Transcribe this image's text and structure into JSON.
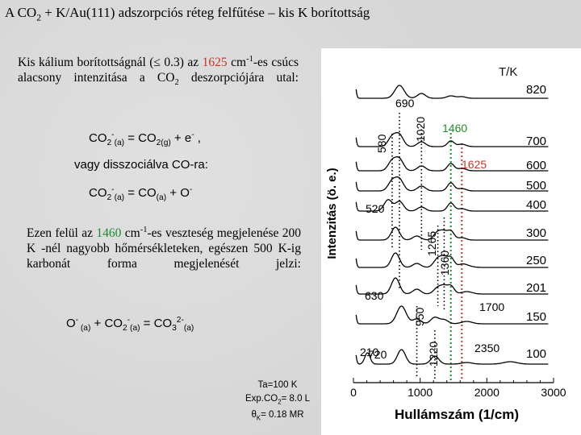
{
  "slide": {
    "title_pre": "A CO",
    "title_sub": "2",
    "title_post": " + K/Au(111) adszorpciós réteg felfűtése – kis K borítottság",
    "p1_a": "Kis kálium borítottságnál (≤ 0.3) az ",
    "p1_val": "1625",
    "p1_b": " cm",
    "p1_sup": "-1",
    "p1_c": "-es csúcs alacsony intenzitása a CO",
    "p1_sub": "2",
    "p1_d": " deszorpciójára utal:",
    "eq1_a": "CO",
    "eq1_b": "2",
    "eq1_c": "-",
    "eq1_d": "(a)",
    "eq1_e": " = CO",
    "eq1_f": "2(g)",
    "eq1_g": " + e",
    "eq1_h": "-",
    "eq1_i": " ,",
    "or_text": "vagy disszociálva CO-ra:",
    "eq2_a": "CO",
    "eq2_b": "2",
    "eq2_c": "-",
    "eq2_d": "(a)",
    "eq2_e": " = CO",
    "eq2_f": "(a)",
    "eq2_g": " + O",
    "eq2_h": "-",
    "p2_a": "Ezen felül az ",
    "p2_val": "1460",
    "p2_b": " cm",
    "p2_sup": "-1",
    "p2_c": "-es veszteség megjelenése 200 K -nél nagyobb hőmérsékleteken, egészen 500 K-ig karbonát forma megjelenését jelzi:",
    "eq3_a": "O",
    "eq3_b": "-",
    "eq3_c": " (a)",
    "eq3_d": " + CO",
    "eq3_e": "2",
    "eq3_f": "-",
    "eq3_g": "(a)",
    "eq3_h": " = CO",
    "eq3_i": "3",
    "eq3_j": "2-",
    "eq3_k": "(a)",
    "exp1": "Ta=100 K",
    "exp2_a": "Exp.CO",
    "exp2_b": "2",
    "exp2_c": "= 8.0 L",
    "exp3_a": "θ",
    "exp3_b": "K",
    "exp3_c": "= 0.18 MR"
  },
  "chart_data": {
    "type": "line",
    "xlabel": "Hullámszám (1/cm)",
    "ylabel": "Intenzitás (ö. e.)",
    "xlim": [
      0,
      3000
    ],
    "xticks": [
      0,
      1000,
      2000,
      3000
    ],
    "legend_title": "T/K",
    "series": [
      {
        "name": "820"
      },
      {
        "name": "700"
      },
      {
        "name": "600"
      },
      {
        "name": "500"
      },
      {
        "name": "400"
      },
      {
        "name": "300"
      },
      {
        "name": "250"
      },
      {
        "name": "201"
      },
      {
        "name": "150"
      },
      {
        "name": "100"
      }
    ],
    "peaks": [
      {
        "x": 210,
        "label": "210"
      },
      {
        "x": 520,
        "label": "520"
      },
      {
        "x": 580,
        "label": "580"
      },
      {
        "x": 630,
        "label": "630"
      },
      {
        "x": 690,
        "label": "690"
      },
      {
        "x": 720,
        "label": "720"
      },
      {
        "x": 950,
        "label": "950"
      },
      {
        "x": 1020,
        "label": "1020"
      },
      {
        "x": 1220,
        "label": "1220"
      },
      {
        "x": 1265,
        "label": "1265"
      },
      {
        "x": 1360,
        "label": "1360"
      },
      {
        "x": 1460,
        "label": "1460"
      },
      {
        "x": 1625,
        "label": "1625"
      },
      {
        "x": 1700,
        "label": "1700"
      },
      {
        "x": 2350,
        "label": "2350"
      }
    ],
    "colors": {
      "line": "#000000",
      "peak_1460": "#1e8a2e",
      "peak_1625": "#c0392b",
      "guide_dots": "#000000"
    }
  }
}
